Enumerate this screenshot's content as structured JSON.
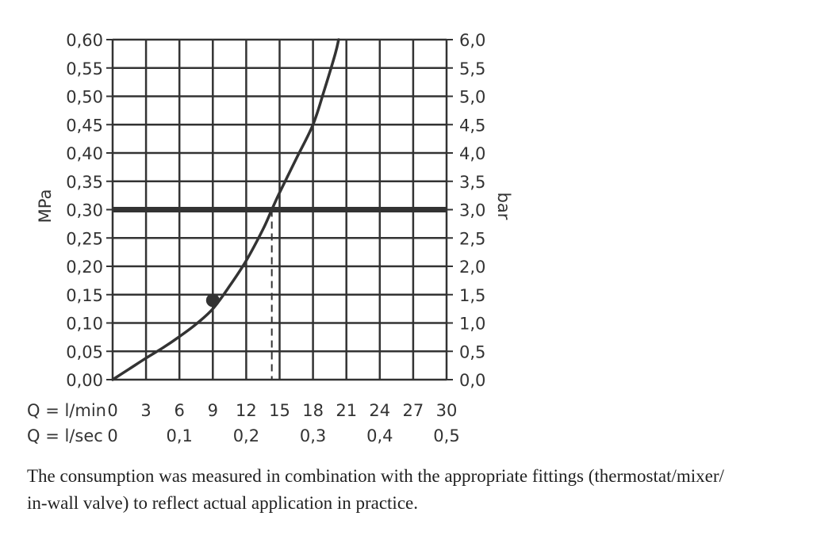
{
  "chart_data": {
    "type": "line",
    "xlabel": "Q = l/min",
    "x2label": "Q = l/sec",
    "ylabel": "MPa",
    "y2label": "bar",
    "xlim": [
      0,
      30
    ],
    "ylim": [
      0,
      0.6
    ],
    "y2lim": [
      0,
      6
    ],
    "grid": true,
    "x_ticks": [
      "0",
      "3",
      "6",
      "9",
      "12",
      "15",
      "18",
      "21",
      "24",
      "27",
      "30"
    ],
    "x2_ticks": [
      "0",
      "0,1",
      "0,2",
      "0,3",
      "0,4",
      "0,5"
    ],
    "y_ticks": [
      "0,00",
      "0,05",
      "0,10",
      "0,15",
      "0,20",
      "0,25",
      "0,30",
      "0,35",
      "0,40",
      "0,45",
      "0,50",
      "0,55",
      "0,60"
    ],
    "y2_ticks": [
      "0,0",
      "0,5",
      "1,0",
      "1,5",
      "2,0",
      "2,5",
      "3,0",
      "3,5",
      "4,0",
      "4,5",
      "5,0",
      "5,5",
      "6,0"
    ],
    "curve": {
      "x": [
        0,
        1.5,
        3,
        4.5,
        6,
        7.5,
        9,
        10.5,
        12,
        13.5,
        14.3,
        15,
        16.5,
        18,
        19,
        20,
        20.3
      ],
      "y": [
        0,
        0.019,
        0.038,
        0.056,
        0.076,
        0.098,
        0.125,
        0.165,
        0.21,
        0.265,
        0.3,
        0.33,
        0.39,
        0.45,
        0.51,
        0.575,
        0.6
      ]
    },
    "reference_line": {
      "y": 0.3
    },
    "operating_point": {
      "x": 14.3,
      "y": 0.3
    },
    "marker_point": {
      "x": 9,
      "y": 0.14
    }
  },
  "footnote": {
    "line1": "The consumption was measured in combination with the appropriate fittings (thermostat/mixer/",
    "line2": "in-wall valve) to reflect actual application in practice."
  }
}
